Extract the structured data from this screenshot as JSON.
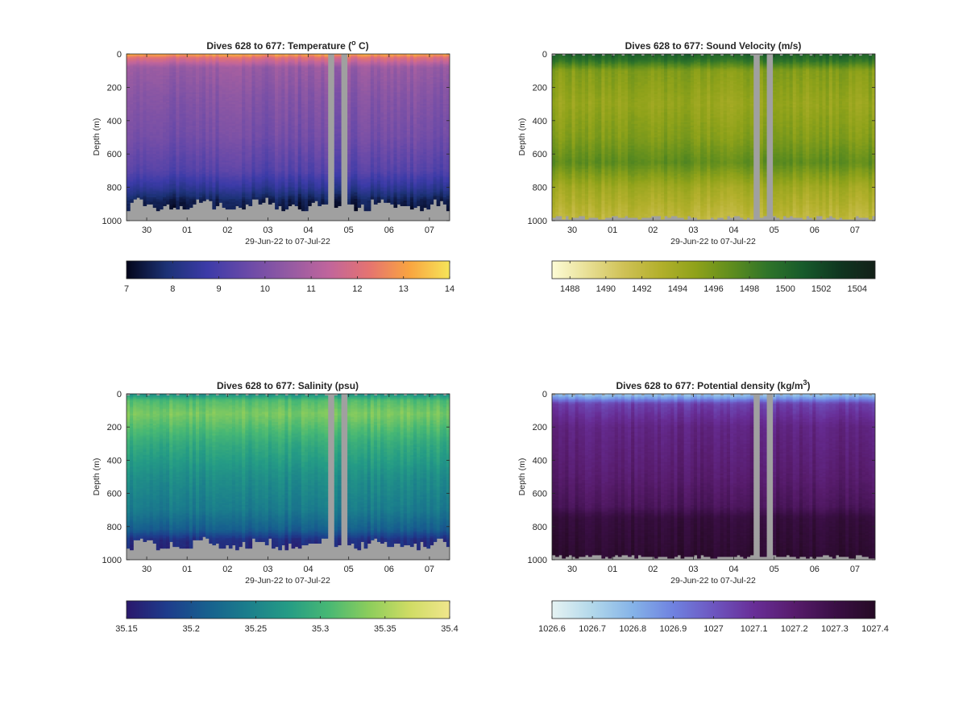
{
  "figure": {
    "background": "#ffffff",
    "fill_gray": "#a0a0a0"
  },
  "chart_data": [
    {
      "id": "temperature",
      "type": "heatmap",
      "title": "Dives 628 to 677: Temperature (",
      "title_sup": "o",
      "title_suffix": " C)",
      "xlabel": "29-Jun-22 to 07-Jul-22",
      "ylabel": "Depth (m)",
      "xlim": [
        29.5,
        37.5
      ],
      "ylim": [
        0,
        1000
      ],
      "yticks": [
        0,
        200,
        400,
        600,
        800,
        1000
      ],
      "ytick_labels": [
        "0",
        "200",
        "400",
        "600",
        "800",
        "1000"
      ],
      "xtick_values": [
        30,
        31,
        32,
        33,
        34,
        35,
        36,
        37
      ],
      "xtick_labels": [
        "30",
        "01",
        "02",
        "03",
        "04",
        "05",
        "06",
        "07"
      ],
      "colorbar": {
        "min": 7,
        "max": 14,
        "ticks": [
          7,
          8,
          9,
          10,
          11,
          12,
          13,
          14
        ],
        "tick_labels": [
          "7",
          "8",
          "9",
          "10",
          "11",
          "12",
          "13",
          "14"
        ],
        "colors": [
          "#03051a",
          "#1c3276",
          "#3c3ba8",
          "#6a4aa8",
          "#935aa3",
          "#c0659c",
          "#e57371",
          "#f9a440",
          "#f6e559"
        ]
      },
      "bottom_profile": "mid",
      "top_dashed": false,
      "data_gaps": [
        [
          34.47,
          34.62
        ],
        [
          34.77,
          34.93
        ]
      ],
      "layers": [
        {
          "depth": 0,
          "value": 13.2
        },
        {
          "depth": 25,
          "value": 12.0
        },
        {
          "depth": 80,
          "value": 10.6
        },
        {
          "depth": 250,
          "value": 10.2
        },
        {
          "depth": 500,
          "value": 9.8
        },
        {
          "depth": 700,
          "value": 9.2
        },
        {
          "depth": 800,
          "value": 8.4
        },
        {
          "depth": 880,
          "value": 7.5
        },
        {
          "depth": 1000,
          "value": 7.1
        }
      ]
    },
    {
      "id": "sound_velocity",
      "type": "heatmap",
      "title": "Dives 628 to 677: Sound Velocity (m/s)",
      "title_sup": "",
      "title_suffix": "",
      "xlabel": "29-Jun-22 to 07-Jul-22",
      "ylabel": "Depth (m)",
      "xlim": [
        29.5,
        37.5
      ],
      "ylim": [
        0,
        1000
      ],
      "yticks": [
        0,
        200,
        400,
        600,
        800,
        1000
      ],
      "ytick_labels": [
        "0",
        "200",
        "400",
        "600",
        "800",
        "1000"
      ],
      "xtick_values": [
        30,
        31,
        32,
        33,
        34,
        35,
        36,
        37
      ],
      "xtick_labels": [
        "30",
        "01",
        "02",
        "03",
        "04",
        "05",
        "06",
        "07"
      ],
      "colorbar": {
        "min": 1487,
        "max": 1505,
        "ticks": [
          1488,
          1490,
          1492,
          1494,
          1496,
          1498,
          1500,
          1502,
          1504
        ],
        "tick_labels": [
          "1488",
          "1490",
          "1492",
          "1494",
          "1496",
          "1498",
          "1500",
          "1502",
          "1504"
        ],
        "colors": [
          "#fdfcd6",
          "#e8df94",
          "#cfc156",
          "#b3b02c",
          "#8fa21a",
          "#5f8d1e",
          "#2f7429",
          "#175a2b",
          "#0f3620",
          "#132018"
        ]
      },
      "bottom_profile": "flat",
      "top_dashed": true,
      "data_gaps": [
        [
          34.47,
          34.62
        ],
        [
          34.77,
          34.93
        ]
      ],
      "layers": [
        {
          "depth": 0,
          "value": 1500.5
        },
        {
          "depth": 40,
          "value": 1499.0
        },
        {
          "depth": 100,
          "value": 1495.5
        },
        {
          "depth": 300,
          "value": 1494.5
        },
        {
          "depth": 500,
          "value": 1495.5
        },
        {
          "depth": 650,
          "value": 1497.0
        },
        {
          "depth": 800,
          "value": 1494.0
        },
        {
          "depth": 1000,
          "value": 1492.0
        }
      ]
    },
    {
      "id": "salinity",
      "type": "heatmap",
      "title": "Dives 628 to 677: Salinity (psu)",
      "title_sup": "",
      "title_suffix": "",
      "xlabel": "29-Jun-22 to 07-Jul-22",
      "ylabel": "Depth (m)",
      "xlim": [
        29.5,
        37.5
      ],
      "ylim": [
        0,
        1000
      ],
      "yticks": [
        0,
        200,
        400,
        600,
        800,
        1000
      ],
      "ytick_labels": [
        "0",
        "200",
        "400",
        "600",
        "800",
        "1000"
      ],
      "xtick_values": [
        30,
        31,
        32,
        33,
        34,
        35,
        36,
        37
      ],
      "xtick_labels": [
        "30",
        "01",
        "02",
        "03",
        "04",
        "05",
        "06",
        "07"
      ],
      "colorbar": {
        "min": 35.15,
        "max": 35.4,
        "ticks": [
          35.15,
          35.2,
          35.25,
          35.3,
          35.35,
          35.4
        ],
        "tick_labels": [
          "35.15",
          "35.2",
          "35.25",
          "35.3",
          "35.35",
          "35.4"
        ],
        "colors": [
          "#2a186c",
          "#1e3c8c",
          "#17608e",
          "#1b7e8c",
          "#259c85",
          "#48b874",
          "#8ccd5c",
          "#cfdc64",
          "#f0e68c"
        ]
      },
      "bottom_profile": "mid",
      "top_dashed": true,
      "data_gaps": [
        [
          34.47,
          34.62
        ],
        [
          34.77,
          34.93
        ]
      ],
      "layers": [
        {
          "depth": 0,
          "value": 35.26
        },
        {
          "depth": 40,
          "value": 35.31
        },
        {
          "depth": 120,
          "value": 35.33
        },
        {
          "depth": 300,
          "value": 35.29
        },
        {
          "depth": 500,
          "value": 35.26
        },
        {
          "depth": 700,
          "value": 35.24
        },
        {
          "depth": 820,
          "value": 35.21
        },
        {
          "depth": 880,
          "value": 35.17
        },
        {
          "depth": 1000,
          "value": 35.16
        }
      ]
    },
    {
      "id": "potential_density",
      "type": "heatmap",
      "title": "Dives 628 to 677: Potential density (kg/m",
      "title_sup": "3",
      "title_suffix": ")",
      "xlabel": "29-Jun-22 to 07-Jul-22",
      "ylabel": "Depth (m)",
      "xlim": [
        29.5,
        37.5
      ],
      "ylim": [
        0,
        1000
      ],
      "yticks": [
        0,
        200,
        400,
        600,
        800,
        1000
      ],
      "ytick_labels": [
        "0",
        "200",
        "400",
        "600",
        "800",
        "1000"
      ],
      "xtick_values": [
        30,
        31,
        32,
        33,
        34,
        35,
        36,
        37
      ],
      "xtick_labels": [
        "30",
        "01",
        "02",
        "03",
        "04",
        "05",
        "06",
        "07"
      ],
      "colorbar": {
        "min": 1026.6,
        "max": 1027.4,
        "ticks": [
          1026.6,
          1026.7,
          1026.8,
          1026.9,
          1027,
          1027.1,
          1027.2,
          1027.3,
          1027.4
        ],
        "tick_labels": [
          "1026.6",
          "1026.7",
          "1026.8",
          "1026.9",
          "1027",
          "1027.1",
          "1027.2",
          "1027.3",
          "1027.4"
        ],
        "colors": [
          "#e6f3f3",
          "#b2d8ea",
          "#85b3e8",
          "#6f82e0",
          "#6d56c0",
          "#682e97",
          "#571c6c",
          "#3a0f45",
          "#260a25"
        ]
      },
      "bottom_profile": "flat",
      "top_dashed": true,
      "data_gaps": [
        [
          34.47,
          34.62
        ],
        [
          34.77,
          34.93
        ]
      ],
      "layers": [
        {
          "depth": 0,
          "value": 1026.75
        },
        {
          "depth": 25,
          "value": 1026.85
        },
        {
          "depth": 60,
          "value": 1027.05
        },
        {
          "depth": 200,
          "value": 1027.15
        },
        {
          "depth": 500,
          "value": 1027.2
        },
        {
          "depth": 680,
          "value": 1027.25
        },
        {
          "depth": 750,
          "value": 1027.33
        },
        {
          "depth": 1000,
          "value": 1027.37
        }
      ]
    }
  ]
}
